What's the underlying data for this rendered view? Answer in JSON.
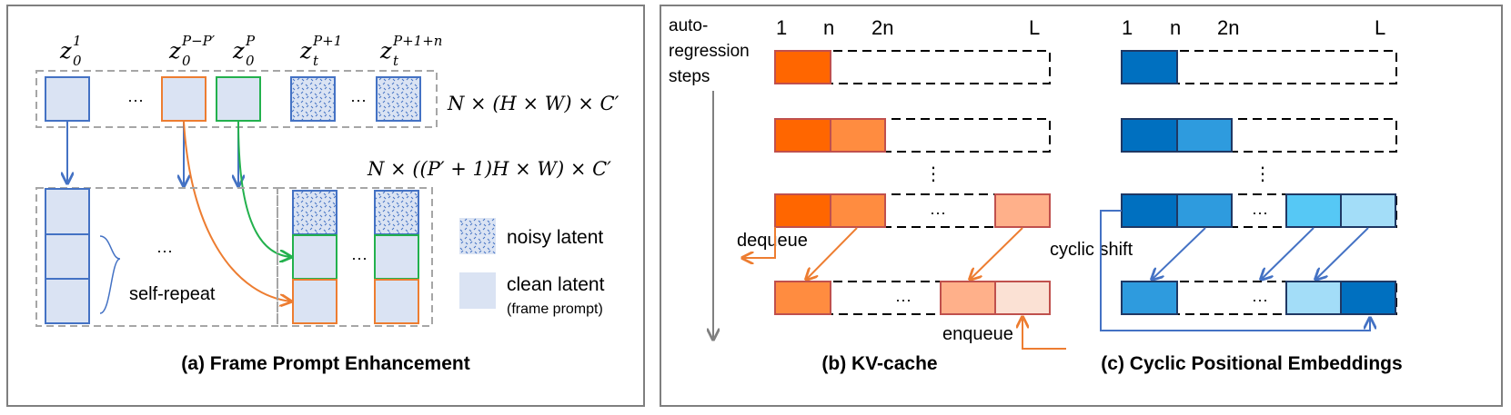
{
  "panel_a": {
    "caption": "(a) Frame Prompt Enhancement",
    "latent_labels": [
      {
        "base": "z",
        "sub": "0",
        "sup": "1"
      },
      {
        "base": "z",
        "sub": "0",
        "sup": "P−P′"
      },
      {
        "base": "z",
        "sub": "0",
        "sup": "P"
      },
      {
        "base": "z",
        "sub": "t",
        "sup": "P+1"
      },
      {
        "base": "z",
        "sub": "t",
        "sup": "P+1+n"
      }
    ],
    "ellipsis": "···",
    "shape_top": "N × (H × W) × C′",
    "shape_bottom": "N × ((P′ + 1)H × W) × C′",
    "self_repeat": "self-repeat",
    "legend": {
      "noisy": "noisy latent",
      "clean": "clean latent",
      "clean_sub": "(frame prompt)"
    },
    "colors": {
      "blue": "#4472c4",
      "orange": "#ed7d31",
      "green": "#23b14d",
      "fill": "#dae3f3"
    }
  },
  "panel_b": {
    "caption": "(b) KV-cache",
    "steps_label": [
      "auto-",
      "regression",
      "steps"
    ],
    "ticks": [
      "1",
      "n",
      "2n",
      "L"
    ],
    "dequeue": "dequeue",
    "enqueue": "enqueue",
    "vdots": "⋮",
    "ellipsis": "···",
    "colors": [
      "#ff6600",
      "#ff8c40",
      "#ffb08a",
      "#fbe1d4"
    ]
  },
  "panel_c": {
    "caption": "(c) Cyclic Positional Embeddings",
    "ticks": [
      "1",
      "n",
      "2n",
      "L"
    ],
    "cyclic_shift": "cyclic shift",
    "vdots": "⋮",
    "ellipsis": "···",
    "colors": [
      "#0070c0",
      "#2e9bde",
      "#56c8f5",
      "#a3ddf8"
    ]
  }
}
